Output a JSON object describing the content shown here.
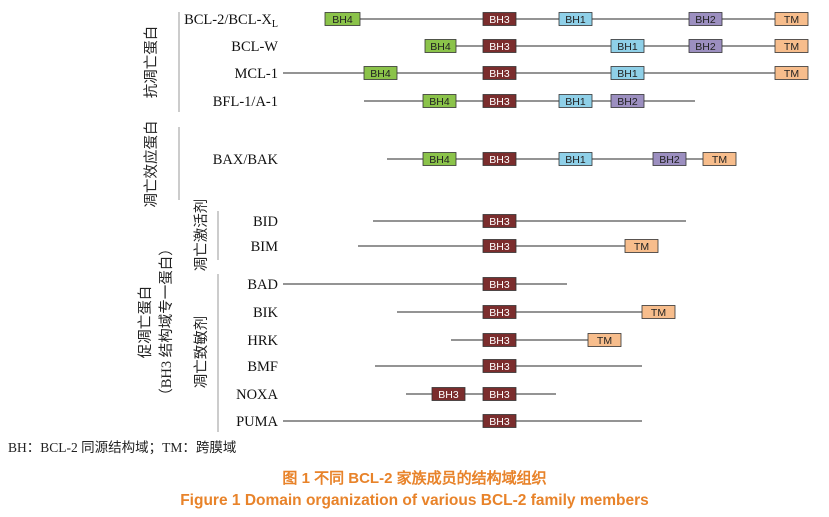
{
  "colors": {
    "BH4": "#8bc34a",
    "BH3": "#7b2d2d",
    "BH1": "#8fd0e8",
    "BH2": "#9c8fc0",
    "TM": "#f7bd8c",
    "line": "#555555",
    "bracket": "#999999",
    "caption": "#e8832a"
  },
  "groups": {
    "anti_apoptotic": "抗凋亡蛋白",
    "effector": "凋亡效应蛋白",
    "pro_apoptotic": "促凋亡蛋白",
    "pro_apoptotic_sub": "（BH3 结构域专一蛋白）",
    "activator": "凋亡激活剂",
    "sensitizer": "凋亡致敏剂"
  },
  "rows": [
    {
      "name": "BCL-2/BCL-X",
      "subscript": "L",
      "line": [
        325,
        808
      ],
      "domains": [
        {
          "label": "BH4",
          "start": 325,
          "end": 360
        },
        {
          "label": "BH3",
          "start": 483,
          "end": 516
        },
        {
          "label": "BH1",
          "start": 559,
          "end": 592
        },
        {
          "label": "BH2",
          "start": 689,
          "end": 722
        },
        {
          "label": "TM",
          "start": 775,
          "end": 808
        }
      ]
    },
    {
      "name": "BCL-W",
      "line": [
        425,
        808
      ],
      "domains": [
        {
          "label": "BH4",
          "start": 425,
          "end": 456
        },
        {
          "label": "BH3",
          "start": 483,
          "end": 516
        },
        {
          "label": "BH1",
          "start": 611,
          "end": 644
        },
        {
          "label": "BH2",
          "start": 689,
          "end": 722
        },
        {
          "label": "TM",
          "start": 775,
          "end": 808
        }
      ]
    },
    {
      "name": "MCL-1",
      "line": [
        283,
        808
      ],
      "domains": [
        {
          "label": "BH4",
          "start": 364,
          "end": 397
        },
        {
          "label": "BH3",
          "start": 483,
          "end": 516
        },
        {
          "label": "BH1",
          "start": 611,
          "end": 644
        },
        {
          "label": "TM",
          "start": 775,
          "end": 808
        }
      ]
    },
    {
      "name": "BFL-1/A-1",
      "line": [
        364,
        695
      ],
      "domains": [
        {
          "label": "BH4",
          "start": 423,
          "end": 456
        },
        {
          "label": "BH3",
          "start": 483,
          "end": 516
        },
        {
          "label": "BH1",
          "start": 559,
          "end": 592
        },
        {
          "label": "BH2",
          "start": 611,
          "end": 644
        }
      ]
    },
    {
      "name": "BAX/BAK",
      "line": [
        387,
        736
      ],
      "domains": [
        {
          "label": "BH4",
          "start": 423,
          "end": 456
        },
        {
          "label": "BH3",
          "start": 483,
          "end": 516
        },
        {
          "label": "BH1",
          "start": 559,
          "end": 592
        },
        {
          "label": "BH2",
          "start": 653,
          "end": 686
        },
        {
          "label": "TM",
          "start": 703,
          "end": 736
        }
      ]
    },
    {
      "name": "BID",
      "line": [
        373,
        686
      ],
      "domains": [
        {
          "label": "BH3",
          "start": 483,
          "end": 516
        }
      ]
    },
    {
      "name": "BIM",
      "line": [
        358,
        658
      ],
      "domains": [
        {
          "label": "BH3",
          "start": 483,
          "end": 516
        },
        {
          "label": "TM",
          "start": 625,
          "end": 658
        }
      ]
    },
    {
      "name": "BAD",
      "line": [
        283,
        567
      ],
      "domains": [
        {
          "label": "BH3",
          "start": 483,
          "end": 516
        }
      ]
    },
    {
      "name": "BIK",
      "line": [
        397,
        675
      ],
      "domains": [
        {
          "label": "BH3",
          "start": 483,
          "end": 516
        },
        {
          "label": "TM",
          "start": 642,
          "end": 675
        }
      ]
    },
    {
      "name": "HRK",
      "line": [
        451,
        621
      ],
      "domains": [
        {
          "label": "BH3",
          "start": 483,
          "end": 516
        },
        {
          "label": "TM",
          "start": 588,
          "end": 621
        }
      ]
    },
    {
      "name": "BMF",
      "line": [
        375,
        642
      ],
      "domains": [
        {
          "label": "BH3",
          "start": 483,
          "end": 516
        }
      ]
    },
    {
      "name": "NOXA",
      "line": [
        406,
        556
      ],
      "domains": [
        {
          "label": "BH3",
          "start": 432,
          "end": 465
        },
        {
          "label": "BH3",
          "start": 483,
          "end": 516
        }
      ]
    },
    {
      "name": "PUMA",
      "line": [
        283,
        642
      ],
      "domains": [
        {
          "label": "BH3",
          "start": 483,
          "end": 516
        }
      ]
    }
  ],
  "legend": "BH：BCL-2 同源结构域；TM：跨膜域",
  "caption": {
    "cn": "图 1  不同 BCL-2 家族成员的结构域组织",
    "en": "Figure 1  Domain organization of various BCL-2 family members"
  }
}
